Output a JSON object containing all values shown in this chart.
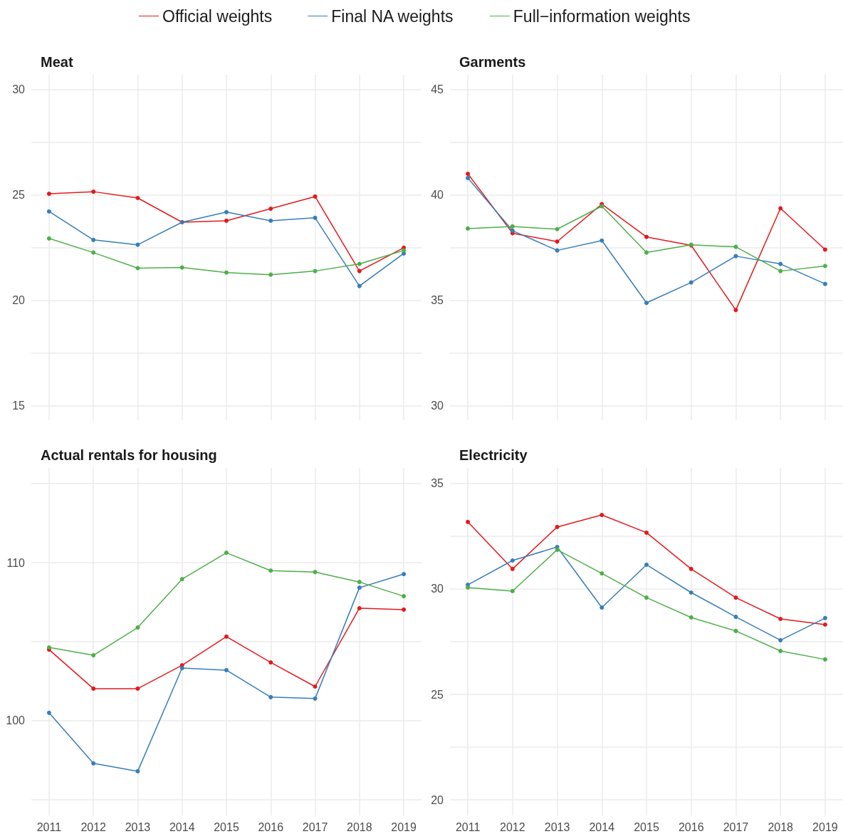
{
  "chart_data": [
    {
      "type": "line",
      "title": "Meat",
      "x": [
        2011,
        2012,
        2013,
        2014,
        2015,
        2016,
        2017,
        2018,
        2019
      ],
      "xlim": [
        2010.6,
        2019.4
      ],
      "xticks": [
        2011,
        2012,
        2013,
        2014,
        2015,
        2016,
        2017,
        2018,
        2019
      ],
      "ylim": [
        14.3,
        30.7
      ],
      "yticks": [
        15,
        {
          "value": 17.5,
          "label": null
        },
        20,
        {
          "value": 22.5,
          "label": null
        },
        25,
        {
          "value": 27.5,
          "label": null
        },
        30
      ],
      "tick_labels": "y",
      "grid": true,
      "legend": "top",
      "marker": "circle",
      "line_style": "solid",
      "series": [
        {
          "name": "Official weights",
          "color": "#e41a1c",
          "values": [
            25.05,
            25.15,
            24.85,
            23.7,
            23.77,
            24.34,
            24.92,
            21.38,
            22.49
          ]
        },
        {
          "name": "Final NA weights",
          "color": "#377eb8",
          "values": [
            24.21,
            22.86,
            22.63,
            23.7,
            24.18,
            23.77,
            23.91,
            20.67,
            22.22
          ]
        },
        {
          "name": "Full−information weights",
          "color": "#4daf4a",
          "values": [
            22.93,
            22.26,
            21.52,
            21.55,
            21.31,
            21.21,
            21.38,
            21.72,
            22.36
          ]
        }
      ]
    },
    {
      "type": "line",
      "title": "Garments",
      "x": [
        2011,
        2012,
        2013,
        2014,
        2015,
        2016,
        2017,
        2018,
        2019
      ],
      "xlim": [
        2010.6,
        2019.4
      ],
      "xticks": [
        2011,
        2012,
        2013,
        2014,
        2015,
        2016,
        2017,
        2018,
        2019
      ],
      "ylim": [
        29.3,
        45.7
      ],
      "yticks": [
        30,
        {
          "value": 32.5,
          "label": null
        },
        35,
        {
          "value": 37.5,
          "label": null
        },
        40,
        {
          "value": 42.5,
          "label": null
        },
        45
      ],
      "tick_labels": "y",
      "grid": true,
      "marker": "circle",
      "line_style": "solid",
      "series": [
        {
          "color": "#e41a1c",
          "values": [
            41.0,
            38.18,
            37.78,
            39.56,
            38.0,
            37.6,
            34.53,
            39.36,
            37.4
          ]
        },
        {
          "color": "#377eb8",
          "values": [
            40.8,
            38.3,
            37.36,
            37.83,
            34.87,
            35.84,
            37.09,
            36.72,
            35.77
          ]
        },
        {
          "color": "#4daf4a",
          "values": [
            38.4,
            38.5,
            38.37,
            39.46,
            37.26,
            37.63,
            37.53,
            36.38,
            36.62
          ]
        }
      ]
    },
    {
      "type": "line",
      "title": "Actual rentals for housing",
      "x": [
        2011,
        2012,
        2013,
        2014,
        2015,
        2016,
        2017,
        2018,
        2019
      ],
      "xlim": [
        2010.6,
        2019.4
      ],
      "xticks": [
        2011,
        2012,
        2013,
        2014,
        2015,
        2016,
        2017,
        2018,
        2019
      ],
      "ylim": [
        94,
        116
      ],
      "yticks": [
        {
          "value": 95,
          "label": null
        },
        100,
        {
          "value": 105,
          "label": null
        },
        110,
        {
          "value": 115,
          "label": null
        }
      ],
      "grid": true,
      "marker": "circle",
      "line_style": "solid",
      "series": [
        {
          "color": "#e41a1c",
          "values": [
            104.5,
            102.03,
            102.03,
            103.51,
            105.32,
            103.69,
            102.16,
            107.12,
            107.03
          ]
        },
        {
          "color": "#377eb8",
          "values": [
            100.5,
            97.3,
            96.8,
            103.33,
            103.2,
            101.49,
            101.4,
            108.42,
            109.28
          ]
        },
        {
          "color": "#4daf4a",
          "values": [
            104.64,
            104.14,
            105.9,
            108.96,
            110.63,
            109.5,
            109.41,
            108.78,
            107.88
          ]
        }
      ]
    },
    {
      "type": "line",
      "title": "Electricity",
      "x": [
        2011,
        2012,
        2013,
        2014,
        2015,
        2016,
        2017,
        2018,
        2019
      ],
      "xlim": [
        2010.6,
        2019.4
      ],
      "xticks": [
        2011,
        2012,
        2013,
        2014,
        2015,
        2016,
        2017,
        2018,
        2019
      ],
      "ylim": [
        19.26,
        35.74
      ],
      "yticks": [
        20,
        {
          "value": 22.5,
          "label": null
        },
        25,
        {
          "value": 27.5,
          "label": null
        },
        30,
        {
          "value": 32.5,
          "label": null
        },
        35
      ],
      "grid": true,
      "marker": "circle",
      "line_style": "solid",
      "series": [
        {
          "color": "#e41a1c",
          "values": [
            33.18,
            30.95,
            32.94,
            33.51,
            32.67,
            30.95,
            29.59,
            28.58,
            28.31
          ]
        },
        {
          "color": "#377eb8",
          "values": [
            30.2,
            31.35,
            31.99,
            29.12,
            31.15,
            29.83,
            28.68,
            27.57,
            28.62
          ]
        },
        {
          "color": "#4daf4a",
          "values": [
            30.07,
            29.9,
            31.86,
            30.74,
            29.59,
            28.65,
            28.01,
            27.06,
            26.66
          ]
        }
      ]
    }
  ]
}
